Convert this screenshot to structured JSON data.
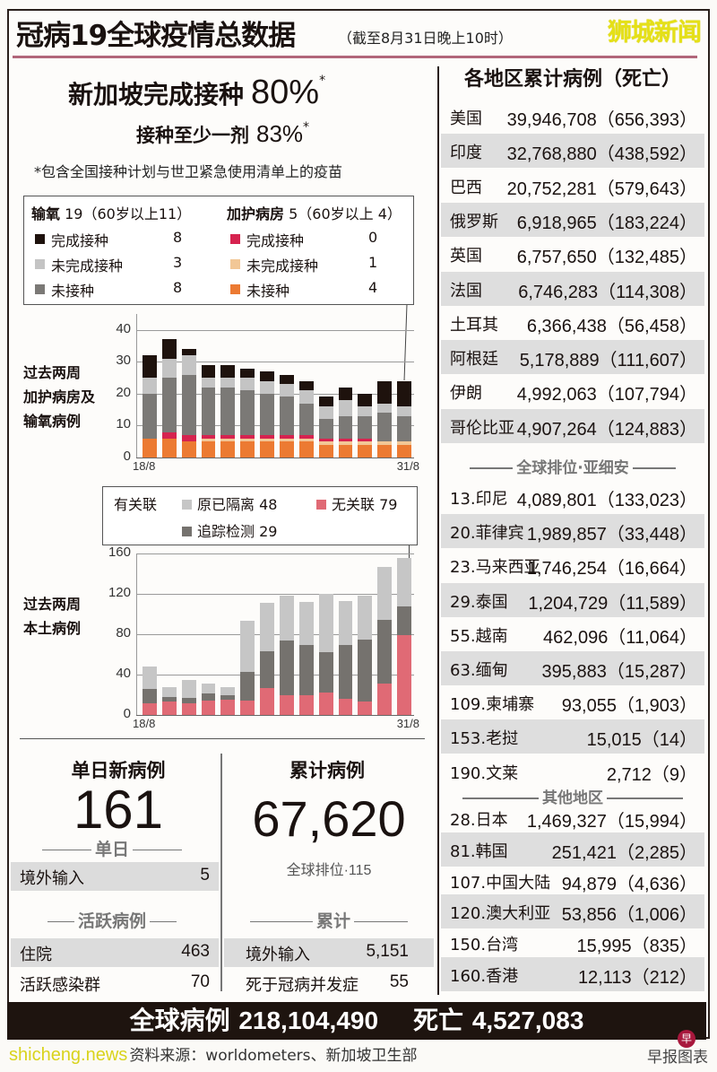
{
  "header": {
    "title": "冠病19全球疫情总数据",
    "subtitle": "（截至8月31日晚上10时）",
    "watermark_brand": "狮城新闻"
  },
  "vaccination": {
    "completed_label": "新加坡完成接种",
    "completed_pct": "80%",
    "completed_mark": "*",
    "one_dose_label": "接种至少一剂",
    "one_dose_pct": "83%",
    "one_dose_mark": "*",
    "note": "*包含全国接种计划与世卫紧急使用清单上的疫苗"
  },
  "legend1": {
    "oxygen": {
      "header_bold": "输氧",
      "header_rest": " 19（60岁以上11）",
      "items": [
        {
          "label": "完成接种",
          "value": "8",
          "color": "#1e120d"
        },
        {
          "label": "未完成接种",
          "value": "3",
          "color": "#c4c4c4"
        },
        {
          "label": "未接种",
          "value": "8",
          "color": "#7b7976"
        }
      ]
    },
    "icu": {
      "header_bold": "加护病房",
      "header_rest": " 5（60岁以上 4）",
      "items": [
        {
          "label": "完成接种",
          "value": "0",
          "color": "#d6234f"
        },
        {
          "label": "未完成接种",
          "value": "1",
          "color": "#f2c796"
        },
        {
          "label": "未接种",
          "value": "4",
          "color": "#ec7a32"
        }
      ]
    }
  },
  "legend2": {
    "linked_label": "有关联",
    "items": [
      {
        "label": "原已隔离",
        "value": "48",
        "color": "#c6c6c6"
      },
      {
        "label": "无关联",
        "value": "79",
        "color": "#e06a75"
      },
      {
        "label": "追踪检测",
        "value": "29",
        "color": "#75726e"
      }
    ]
  },
  "chart_data": [
    {
      "type": "bar",
      "stacked": true,
      "title": "过去两周加护病房及输氧病例",
      "label_lines": [
        "过去两周",
        "加护病房及",
        "输氧病例"
      ],
      "categories": [
        "18/8",
        "19/8",
        "20/8",
        "21/8",
        "22/8",
        "23/8",
        "24/8",
        "25/8",
        "26/8",
        "27/8",
        "28/8",
        "29/8",
        "30/8",
        "31/8"
      ],
      "x_tick_labels": [
        "18/8",
        "31/8"
      ],
      "yticks": [
        0,
        10,
        20,
        30,
        40
      ],
      "ylim": [
        0,
        45
      ],
      "grid": true,
      "series": [
        {
          "name": "加护病房·未接种",
          "color": "#ec7a32",
          "values": [
            6,
            6,
            5,
            5,
            5,
            5,
            5,
            5,
            5,
            4,
            4,
            4,
            4,
            4
          ]
        },
        {
          "name": "加护病房·未完成接种",
          "color": "#f2c796",
          "values": [
            0,
            0,
            0,
            1,
            1,
            1,
            1,
            1,
            1,
            1,
            1,
            1,
            1,
            1
          ]
        },
        {
          "name": "加护病房·完成接种",
          "color": "#d6234f",
          "values": [
            0,
            2,
            2,
            1,
            1,
            1,
            1,
            1,
            1,
            1,
            1,
            1,
            0,
            0
          ]
        },
        {
          "name": "输氧·未接种",
          "color": "#7b7976",
          "values": [
            14,
            17,
            19,
            15,
            15,
            14,
            13,
            12,
            10,
            6,
            7,
            7,
            9,
            8
          ]
        },
        {
          "name": "输氧·未完成接种",
          "color": "#c4c4c4",
          "values": [
            5,
            6,
            6,
            3,
            3,
            4,
            4,
            4,
            4,
            4,
            5,
            3,
            3,
            3
          ]
        },
        {
          "name": "输氧·完成接种",
          "color": "#1e120d",
          "values": [
            7,
            6,
            2,
            4,
            4,
            3,
            3,
            3,
            3,
            3,
            4,
            4,
            7,
            8
          ]
        }
      ]
    },
    {
      "type": "bar",
      "stacked": true,
      "title": "过去两周本土病例",
      "label_lines": [
        "过去两周",
        "本土病例"
      ],
      "categories": [
        "18/8",
        "19/8",
        "20/8",
        "21/8",
        "22/8",
        "23/8",
        "24/8",
        "25/8",
        "26/8",
        "27/8",
        "28/8",
        "29/8",
        "30/8",
        "31/8"
      ],
      "x_tick_labels": [
        "18/8",
        "31/8"
      ],
      "yticks": [
        0,
        40,
        80,
        120,
        160
      ],
      "ylim": [
        0,
        160
      ],
      "grid": true,
      "series": [
        {
          "name": "无关联",
          "color": "#e06a75",
          "values": [
            12,
            13,
            12,
            14,
            15,
            14,
            27,
            20,
            20,
            22,
            16,
            13,
            31,
            79
          ]
        },
        {
          "name": "追踪检测",
          "color": "#75726e",
          "values": [
            14,
            5,
            5,
            7,
            5,
            29,
            36,
            54,
            49,
            40,
            53,
            62,
            63,
            29
          ]
        },
        {
          "name": "原已隔离",
          "color": "#c6c6c6",
          "values": [
            22,
            10,
            18,
            10,
            8,
            50,
            48,
            44,
            43,
            58,
            44,
            43,
            53,
            48
          ]
        }
      ]
    }
  ],
  "daily": {
    "title": "单日新病例",
    "value": "161",
    "section_label": "单日",
    "rows": [
      {
        "label": "境外输入",
        "value": "5"
      }
    ],
    "active_label": "活跃病例",
    "active_rows": [
      {
        "label": "住院",
        "value": "463"
      },
      {
        "label": "活跃感染群",
        "value": "70"
      }
    ]
  },
  "cumulative": {
    "title": "累计病例",
    "value": "67,620",
    "rank": "全球排位·115",
    "section_label": "累计",
    "rows": [
      {
        "label": "境外输入",
        "value": "5,151"
      },
      {
        "label": "死于冠病并发症",
        "value": "55"
      }
    ]
  },
  "regions": {
    "title": "各地区累计病例（死亡）",
    "top": [
      {
        "name": "美国",
        "cases": "39,946,708（656,393）"
      },
      {
        "name": "印度",
        "cases": "32,768,880（438,592）"
      },
      {
        "name": "巴西",
        "cases": "20,752,281（579,643）"
      },
      {
        "name": "俄罗斯",
        "cases": "6,918,965（183,224）"
      },
      {
        "name": "英国",
        "cases": "6,757,650（132,485）"
      },
      {
        "name": "法国",
        "cases": "6,746,283（114,308）"
      },
      {
        "name": "土耳其",
        "cases": "6,366,438（56,458）"
      },
      {
        "name": "阿根廷",
        "cases": "5,178,889（111,607）"
      },
      {
        "name": "伊朗",
        "cases": "4,992,063（107,794）"
      },
      {
        "name": "哥伦比亚",
        "cases": "4,907,264（124,883）"
      }
    ],
    "asean_label": "全球排位·亚细安",
    "asean": [
      {
        "name": "13.印尼",
        "cases": "4,089,801（133,023）"
      },
      {
        "name": "20.菲律宾",
        "cases": "1,989,857（33,448）"
      },
      {
        "name": "23.马来西亚",
        "cases": "1,746,254（16,664）"
      },
      {
        "name": "29.泰国",
        "cases": "1,204,729（11,589）"
      },
      {
        "name": "55.越南",
        "cases": "462,096（11,064）"
      },
      {
        "name": "63.缅甸",
        "cases": "395,883（15,287）"
      },
      {
        "name": "109.柬埔寨",
        "cases": "93,055（1,903）"
      },
      {
        "name": "153.老挝",
        "cases": "15,015（14）"
      },
      {
        "name": "190.文莱",
        "cases": "2,712（9）"
      }
    ],
    "other_label": "其他地区",
    "other": [
      {
        "name": "28.日本",
        "cases": "1,469,327（15,994）"
      },
      {
        "name": "81.韩国",
        "cases": "251,421（2,285）"
      },
      {
        "name": "107.中国大陆",
        "cases": "94,879（4,636）"
      },
      {
        "name": "120.澳大利亚",
        "cases": "53,856（1,006）"
      },
      {
        "name": "150.台湾",
        "cases": "15,995（835）"
      },
      {
        "name": "160.香港",
        "cases": "12,113（212）"
      }
    ]
  },
  "global": {
    "cases_label": "全球病例",
    "cases_value": "218,104,490",
    "deaths_label": "死亡",
    "deaths_value": "4,527,083"
  },
  "footer": {
    "watermark": "shicheng.news",
    "source": "资料来源：worldometers、新加坡卫生部",
    "credit": "早报图表",
    "logo_glyph": "早"
  }
}
